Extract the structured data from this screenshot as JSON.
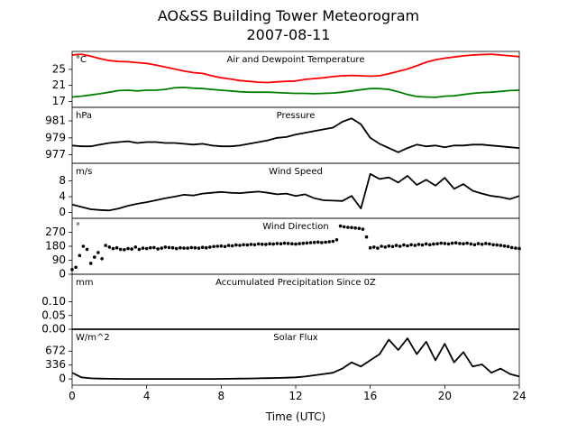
{
  "title": "AO&SS Building Tower Meteorogram",
  "subtitle": "2007-08-11",
  "xlabel": "Time (UTC)",
  "colors": {
    "temperature": "#ff0000",
    "dewpoint": "#008000",
    "black": "#000000"
  },
  "chart_data": [
    {
      "type": "line",
      "title": "Air and Dewpoint Temperature",
      "unit": "°C",
      "ylim": [
        15.5,
        29.5
      ],
      "yticks": [
        17,
        21,
        25
      ],
      "series": [
        {
          "color": "#ff0000",
          "x": [
            0,
            0.5,
            1,
            1.5,
            2,
            2.5,
            3,
            3.5,
            4,
            4.5,
            5,
            5.5,
            6,
            6.5,
            7,
            7.5,
            8,
            8.5,
            9,
            9.5,
            10,
            10.5,
            11,
            11.5,
            12,
            12.5,
            13,
            13.5,
            14,
            14.5,
            15,
            15.5,
            16,
            16.5,
            17,
            17.5,
            18,
            18.5,
            19,
            19.5,
            20,
            20.5,
            21,
            21.5,
            22,
            22.5,
            23,
            23.5,
            24
          ],
          "values": [
            28.6,
            28.8,
            28.3,
            27.7,
            27.2,
            27.0,
            26.9,
            26.7,
            26.5,
            26.1,
            25.6,
            25.1,
            24.6,
            24.2,
            24.0,
            23.4,
            22.9,
            22.6,
            22.2,
            22.0,
            21.8,
            21.7,
            21.9,
            22.0,
            22.1,
            22.5,
            22.7,
            22.9,
            23.2,
            23.4,
            23.5,
            23.4,
            23.3,
            23.4,
            23.9,
            24.5,
            25.1,
            25.9,
            26.8,
            27.4,
            27.8,
            28.1,
            28.4,
            28.6,
            28.7,
            28.8,
            28.6,
            28.4,
            28.2
          ]
        },
        {
          "color": "#008000",
          "x": [
            0,
            0.5,
            1,
            1.5,
            2,
            2.5,
            3,
            3.5,
            4,
            4.5,
            5,
            5.5,
            6,
            6.5,
            7,
            7.5,
            8,
            8.5,
            9,
            9.5,
            10,
            10.5,
            11,
            11.5,
            12,
            12.5,
            13,
            13.5,
            14,
            14.5,
            15,
            15.5,
            16,
            16.5,
            17,
            17.5,
            18,
            18.5,
            19,
            19.5,
            20,
            20.5,
            21,
            21.5,
            22,
            22.5,
            23,
            23.5,
            24
          ],
          "values": [
            18.1,
            18.3,
            18.6,
            18.9,
            19.3,
            19.7,
            19.8,
            19.6,
            19.8,
            19.8,
            20.0,
            20.4,
            20.5,
            20.3,
            20.2,
            20.0,
            19.8,
            19.6,
            19.4,
            19.3,
            19.3,
            19.3,
            19.2,
            19.1,
            19.0,
            19.0,
            18.9,
            19.0,
            19.1,
            19.3,
            19.6,
            19.9,
            20.2,
            20.2,
            20.0,
            19.4,
            18.7,
            18.2,
            18.1,
            18.0,
            18.3,
            18.4,
            18.7,
            19.0,
            19.2,
            19.3,
            19.5,
            19.7,
            19.8
          ]
        }
      ]
    },
    {
      "type": "line",
      "title": "Pressure",
      "unit": "hPa",
      "ylim": [
        976.0,
        982.6
      ],
      "yticks": [
        977,
        979,
        981
      ],
      "series": [
        {
          "color": "#000000",
          "x": [
            0,
            0.5,
            1,
            1.5,
            2,
            2.5,
            3,
            3.5,
            4,
            4.5,
            5,
            5.5,
            6,
            6.5,
            7,
            7.5,
            8,
            8.5,
            9,
            9.5,
            10,
            10.5,
            11,
            11.5,
            12,
            12.5,
            13,
            13.5,
            14,
            14.5,
            15,
            15.5,
            16,
            16.5,
            17,
            17.5,
            18,
            18.5,
            19,
            19.5,
            20,
            20.5,
            21,
            21.5,
            22,
            22.5,
            23,
            23.5,
            24
          ],
          "values": [
            978.1,
            978.0,
            978.0,
            978.2,
            978.4,
            978.5,
            978.6,
            978.4,
            978.5,
            978.5,
            978.4,
            978.4,
            978.3,
            978.2,
            978.3,
            978.1,
            978.0,
            978.0,
            978.1,
            978.3,
            978.5,
            978.7,
            979.0,
            979.1,
            979.4,
            979.6,
            979.8,
            980.0,
            980.2,
            980.9,
            981.3,
            980.6,
            979.0,
            978.3,
            977.8,
            977.3,
            977.8,
            978.2,
            978.0,
            978.1,
            977.9,
            978.1,
            978.1,
            978.2,
            978.2,
            978.1,
            978.0,
            977.9,
            977.8
          ]
        }
      ]
    },
    {
      "type": "line",
      "title": "Wind Speed",
      "unit": "m/s",
      "ylim": [
        -1.5,
        12.5
      ],
      "yticks": [
        0,
        4,
        8
      ],
      "series": [
        {
          "color": "#000000",
          "x": [
            0,
            0.5,
            1,
            1.5,
            2,
            2.5,
            3,
            3.5,
            4,
            4.5,
            5,
            5.5,
            6,
            6.5,
            7,
            7.5,
            8,
            8.5,
            9,
            9.5,
            10,
            10.5,
            11,
            11.5,
            12,
            12.5,
            13,
            13.5,
            14,
            14.5,
            15,
            15.5,
            16,
            16.5,
            17,
            17.5,
            18,
            18.5,
            19,
            19.5,
            20,
            20.5,
            21,
            21.5,
            22,
            22.5,
            23,
            23.5,
            24
          ],
          "values": [
            2.0,
            1.4,
            0.8,
            0.6,
            0.5,
            1.0,
            1.7,
            2.2,
            2.6,
            3.1,
            3.6,
            4.0,
            4.5,
            4.3,
            4.8,
            5.0,
            5.2,
            5.0,
            4.9,
            5.1,
            5.3,
            5.0,
            4.6,
            4.8,
            4.2,
            4.6,
            3.6,
            3.1,
            3.0,
            2.9,
            4.2,
            1.0,
            9.8,
            8.5,
            8.9,
            7.6,
            9.3,
            7.0,
            8.3,
            6.8,
            8.8,
            6.0,
            7.2,
            5.5,
            4.8,
            4.2,
            3.9,
            3.4,
            4.2
          ]
        }
      ]
    },
    {
      "type": "scatter",
      "title": "Wind Direction",
      "unit": "°",
      "ylim": [
        0,
        360
      ],
      "yticks": [
        0,
        90,
        180,
        270
      ],
      "series": [
        {
          "color": "#000000",
          "x": [
            0,
            0.2,
            0.4,
            0.6,
            0.8,
            1,
            1.2,
            1.4,
            1.6,
            1.8,
            2,
            2.2,
            2.4,
            2.6,
            2.8,
            3,
            3.2,
            3.4,
            3.6,
            3.8,
            4,
            4.2,
            4.4,
            4.6,
            4.8,
            5,
            5.2,
            5.4,
            5.6,
            5.8,
            6,
            6.2,
            6.4,
            6.6,
            6.8,
            7,
            7.2,
            7.4,
            7.6,
            7.8,
            8,
            8.2,
            8.4,
            8.6,
            8.8,
            9,
            9.2,
            9.4,
            9.6,
            9.8,
            10,
            10.2,
            10.4,
            10.6,
            10.8,
            11,
            11.2,
            11.4,
            11.6,
            11.8,
            12,
            12.2,
            12.4,
            12.6,
            12.8,
            13,
            13.2,
            13.4,
            13.6,
            13.8,
            14,
            14.2,
            14.4,
            14.6,
            14.8,
            15,
            15.2,
            15.4,
            15.6,
            15.8,
            16,
            16.2,
            16.4,
            16.6,
            16.8,
            17,
            17.2,
            17.4,
            17.6,
            17.8,
            18,
            18.2,
            18.4,
            18.6,
            18.8,
            19,
            19.2,
            19.4,
            19.6,
            19.8,
            20,
            20.2,
            20.4,
            20.6,
            20.8,
            21,
            21.2,
            21.4,
            21.6,
            21.8,
            22,
            22.2,
            22.4,
            22.6,
            22.8,
            23,
            23.2,
            23.4,
            23.6,
            23.8,
            24
          ],
          "values": [
            30,
            45,
            120,
            180,
            160,
            70,
            110,
            140,
            100,
            185,
            175,
            165,
            170,
            160,
            158,
            165,
            162,
            175,
            160,
            168,
            165,
            170,
            172,
            163,
            168,
            175,
            172,
            170,
            165,
            170,
            168,
            168,
            172,
            170,
            168,
            173,
            170,
            175,
            178,
            180,
            182,
            178,
            185,
            183,
            188,
            186,
            190,
            188,
            192,
            190,
            195,
            193,
            192,
            196,
            194,
            198,
            196,
            200,
            198,
            196,
            194,
            197,
            199,
            201,
            203,
            205,
            207,
            204,
            206,
            209,
            212,
            222,
            310,
            305,
            302,
            300,
            298,
            295,
            290,
            240,
            170,
            175,
            168,
            180,
            175,
            182,
            178,
            185,
            180,
            188,
            183,
            190,
            186,
            192,
            188,
            195,
            190,
            194,
            196,
            200,
            198,
            195,
            200,
            202,
            198,
            196,
            200,
            195,
            190,
            197,
            193,
            198,
            195,
            190,
            188,
            185,
            182,
            178,
            172,
            168,
            165
          ]
        }
      ]
    },
    {
      "type": "line",
      "title": "Accumulated Precipitation Since 0Z",
      "unit": "mm",
      "ylim": [
        0,
        0.2
      ],
      "yticks": [
        "0.00",
        "0.05",
        "0.10"
      ],
      "series": [
        {
          "color": "#000000",
          "x": [
            0,
            24
          ],
          "values": [
            0,
            0
          ]
        }
      ]
    },
    {
      "type": "line",
      "title": "Solar Flux",
      "unit": "W/m^2",
      "ylim": [
        -150,
        1200
      ],
      "yticks": [
        0,
        336,
        672
      ],
      "series": [
        {
          "color": "#000000",
          "x": [
            0,
            0.5,
            1,
            1.5,
            2,
            2.5,
            3,
            3.5,
            4,
            4.5,
            5,
            5.5,
            6,
            6.5,
            7,
            7.5,
            8,
            8.5,
            9,
            9.5,
            10,
            10.5,
            11,
            11.5,
            12,
            12.5,
            13,
            13.5,
            14,
            14.5,
            15,
            15.5,
            16,
            16.5,
            17,
            17.5,
            18,
            18.5,
            19,
            19.5,
            20,
            20.5,
            21,
            21.5,
            22,
            22.5,
            23,
            23.5,
            24
          ],
          "values": [
            150,
            40,
            15,
            8,
            5,
            2,
            0,
            0,
            0,
            0,
            0,
            0,
            0,
            0,
            0,
            0,
            2,
            5,
            8,
            12,
            15,
            20,
            25,
            30,
            40,
            60,
            90,
            120,
            150,
            250,
            400,
            300,
            450,
            600,
            950,
            700,
            980,
            600,
            900,
            450,
            850,
            400,
            650,
            300,
            350,
            150,
            250,
            120,
            60
          ]
        }
      ]
    }
  ],
  "xaxis": {
    "range": [
      0,
      24
    ],
    "ticks": [
      0,
      4,
      8,
      12,
      16,
      20,
      24
    ]
  }
}
